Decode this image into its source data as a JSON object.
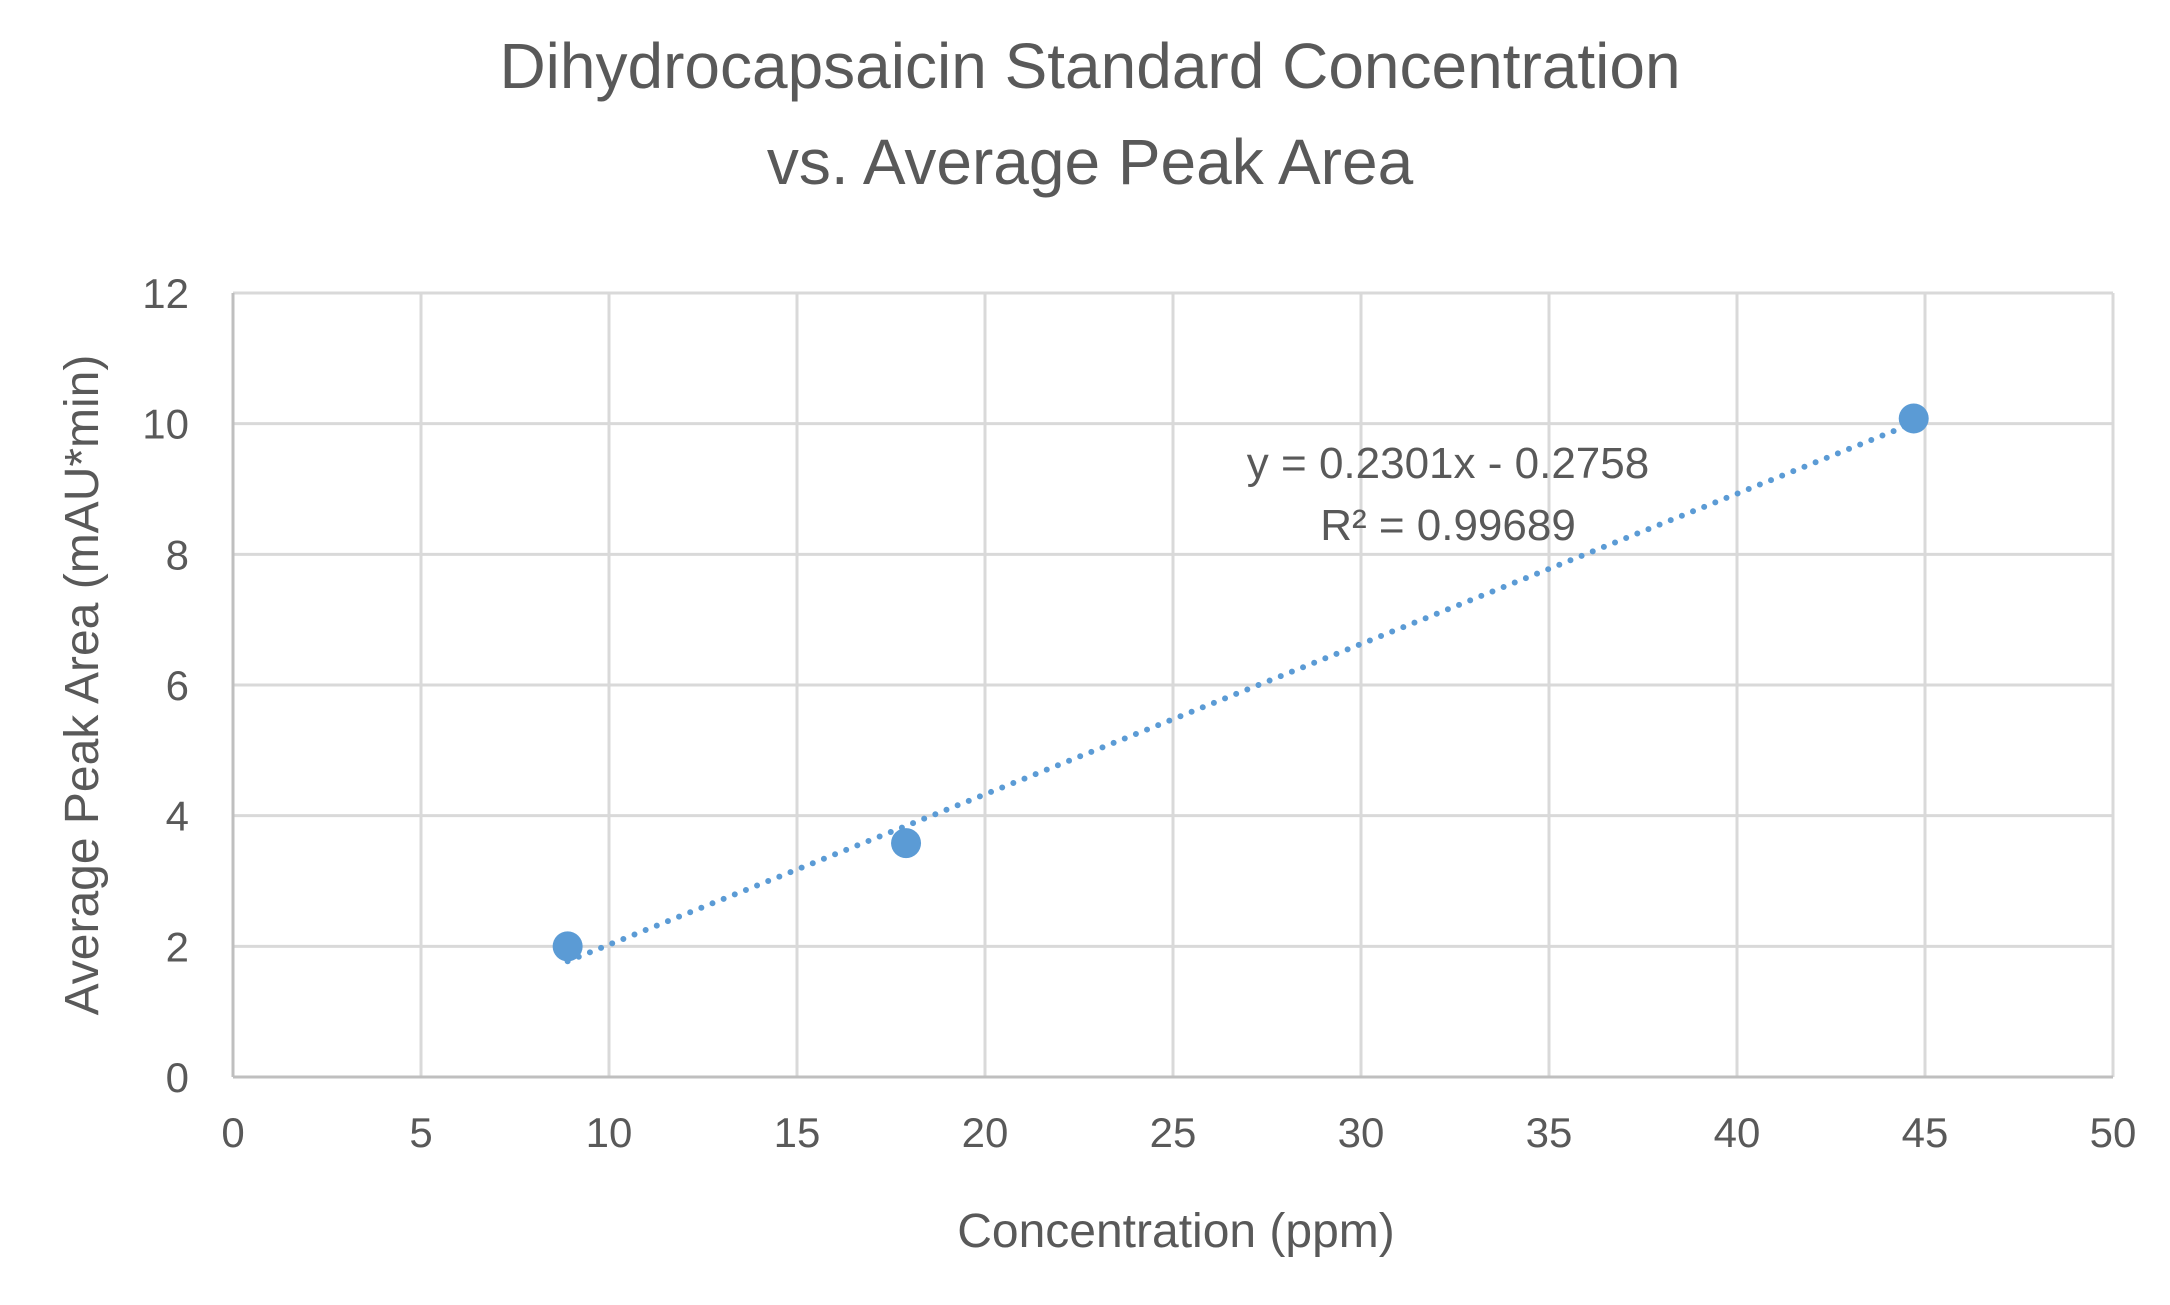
{
  "chart_data": {
    "type": "scatter",
    "title_lines": [
      "Dihydrocapsaicin Standard Concentration",
      "vs. Average Peak Area"
    ],
    "xlabel": "Concentration (ppm)",
    "ylabel": "Average Peak Area (mAU*min)",
    "xlim": [
      0,
      50
    ],
    "ylim": [
      0,
      12
    ],
    "x_ticks": [
      0,
      5,
      10,
      15,
      20,
      25,
      30,
      35,
      40,
      45,
      50
    ],
    "x_tick_labels": [
      "0",
      "5",
      "10",
      "15",
      "20",
      "25",
      "30",
      "35",
      "40",
      "45",
      "50"
    ],
    "y_ticks": [
      0,
      2,
      4,
      6,
      8,
      10,
      12
    ],
    "y_tick_labels": [
      "0",
      "2",
      "4",
      "6",
      "8",
      "10",
      "12"
    ],
    "grid": true,
    "series": [
      {
        "points": [
          {
            "x": 8.9,
            "y": 2.0
          },
          {
            "x": 17.9,
            "y": 3.58
          },
          {
            "x": 44.7,
            "y": 10.08
          }
        ],
        "color": "#5b9bd5"
      }
    ],
    "trendline": {
      "type": "linear",
      "slope": 0.2301,
      "intercept": -0.2758,
      "x_range": [
        8.9,
        44.7
      ],
      "style": "dotted",
      "color": "#5b9bd5",
      "equation_label": "y = 0.2301x - 0.2758",
      "r2_label": "R² = 0.99689"
    }
  }
}
